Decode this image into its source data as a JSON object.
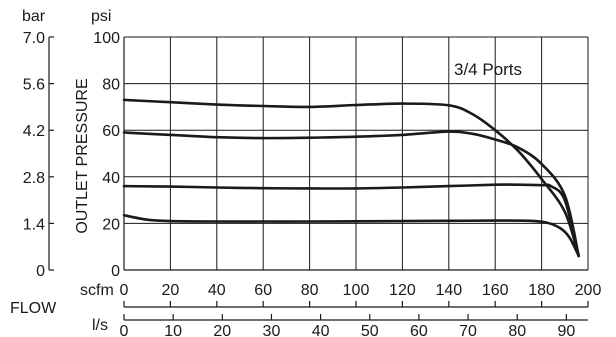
{
  "chart_data": {
    "type": "line",
    "annotation": "3/4 Ports",
    "ylabel": "OUTLET PRESSURE",
    "xlabel": "FLOW",
    "y_psi": {
      "unit": "psi",
      "ticks": [
        "0",
        "20",
        "40",
        "60",
        "80",
        "100"
      ],
      "ylim": [
        0,
        100
      ]
    },
    "y_bar": {
      "unit": "bar",
      "ticks": [
        "0",
        "1.4",
        "2.8",
        "4.2",
        "5.6",
        "7.0"
      ],
      "ylim": [
        0,
        7.0
      ]
    },
    "x_scfm": {
      "unit": "scfm",
      "ticks": [
        "0",
        "20",
        "40",
        "60",
        "80",
        "100",
        "120",
        "140",
        "160",
        "180",
        "200"
      ],
      "xlim": [
        0,
        200
      ]
    },
    "x_ls": {
      "unit": "l/s",
      "ticks": [
        "0",
        "10",
        "20",
        "30",
        "40",
        "50",
        "60",
        "70",
        "80",
        "90"
      ],
      "xlim": [
        0,
        94.4
      ]
    },
    "grid": true,
    "series": [
      {
        "x": [
          0,
          20,
          40,
          60,
          80,
          100,
          120,
          140,
          150,
          160,
          170,
          180,
          190,
          196
        ],
        "y": [
          73,
          72,
          71,
          70.4,
          70,
          70.8,
          71.4,
          70.7,
          67,
          60,
          51,
          39,
          25,
          6
        ]
      },
      {
        "x": [
          0,
          20,
          40,
          60,
          80,
          100,
          120,
          140,
          150,
          160,
          170,
          180,
          190,
          196
        ],
        "y": [
          59,
          58,
          57,
          56.6,
          56.8,
          57.2,
          58,
          59.4,
          58.5,
          56,
          52.5,
          45.5,
          32,
          6
        ]
      },
      {
        "x": [
          0,
          20,
          40,
          60,
          80,
          100,
          120,
          140,
          160,
          170,
          180,
          184,
          190,
          196
        ],
        "y": [
          36,
          35.8,
          35.4,
          35.1,
          35,
          35,
          35.4,
          36,
          36.6,
          36.6,
          36.4,
          36,
          30,
          6
        ]
      },
      {
        "x": [
          0,
          10,
          20,
          40,
          60,
          80,
          100,
          120,
          140,
          160,
          175,
          182,
          188,
          192,
          196
        ],
        "y": [
          23.5,
          21.6,
          21,
          20.8,
          20.8,
          20.8,
          20.9,
          21,
          21.1,
          21.2,
          21.1,
          20.4,
          18,
          14,
          6
        ]
      }
    ]
  }
}
